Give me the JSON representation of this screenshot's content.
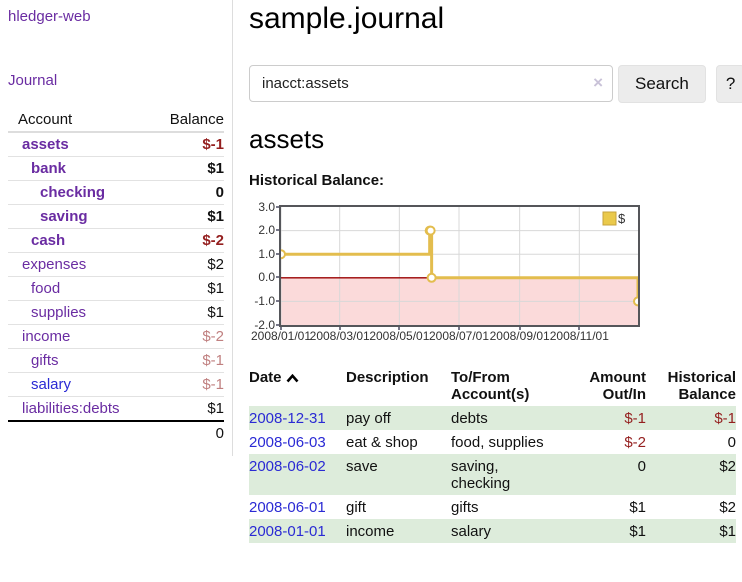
{
  "colors": {
    "link_purple": "#6a2ca2",
    "link_blue": "#2a2ad4",
    "negative_strong": "#941f1f",
    "negative_soft": "#c08080",
    "row_green": "#ddecdb",
    "chart_line": "#e3bd4e",
    "chart_legend_fill": "#eac94b",
    "chart_legend_border": "#c7a33c",
    "chart_negative_fill": "#fbdada",
    "chart_zero_line": "#990000",
    "chart_grid": "#d8d8d8"
  },
  "sidebar": {
    "brand": "hledger-web",
    "nav": {
      "journal_label": "Journal"
    },
    "accounts_table": {
      "headers": {
        "account": "Account",
        "balance": "Balance"
      },
      "rows": [
        {
          "account": "assets",
          "depth": 0,
          "matched": true,
          "balance": "$-1",
          "negative": "strong"
        },
        {
          "account": "bank",
          "depth": 1,
          "matched": true,
          "balance": "$1"
        },
        {
          "account": "checking",
          "depth": 2,
          "matched": true,
          "balance": "0"
        },
        {
          "account": "saving",
          "depth": 2,
          "matched": true,
          "balance": "$1"
        },
        {
          "account": "cash",
          "depth": 1,
          "matched": true,
          "balance": "$-2",
          "negative": "strong"
        },
        {
          "account": "expenses",
          "depth": 0,
          "matched": false,
          "balance": "$2"
        },
        {
          "account": "food",
          "depth": 1,
          "matched": false,
          "balance": "$1"
        },
        {
          "account": "supplies",
          "depth": 1,
          "matched": false,
          "balance": "$1"
        },
        {
          "account": "income",
          "depth": 0,
          "matched": false,
          "balance": "$-2",
          "negative": "soft"
        },
        {
          "account": "gifts",
          "depth": 1,
          "matched": false,
          "balance": "$-1",
          "negative": "soft"
        },
        {
          "account": "salary",
          "depth": 1,
          "matched": false,
          "balance": "$-1",
          "negative": "soft",
          "unvisited": true
        },
        {
          "account": "liabilities:debts",
          "depth": 0,
          "matched": false,
          "balance": "$1"
        }
      ],
      "total": "0"
    }
  },
  "main": {
    "title": "sample.journal",
    "search": {
      "value": "inacct:assets",
      "clear_icon": "×",
      "search_label": "Search",
      "help_label": "?"
    },
    "account_heading": "assets",
    "chart_heading": "Historical Balance:"
  },
  "chart_data": {
    "type": "line",
    "title": "Historical Balance",
    "step": true,
    "xlim": [
      "2008-01-01",
      "2008-12-31"
    ],
    "ylim": [
      -2,
      3
    ],
    "y_ticks": [
      "3.0",
      "2.0",
      "1.0",
      "0.0",
      "-1.0",
      "-2.0"
    ],
    "x_ticks": [
      "2008/01/01",
      "2008/03/01",
      "2008/05/01",
      "2008/07/01",
      "2008/09/01",
      "2008/11/01"
    ],
    "grid": true,
    "legend": {
      "label": "$",
      "position": "top-right"
    },
    "series": [
      {
        "name": "$",
        "points": [
          {
            "x": "2008-01-01",
            "y": 1
          },
          {
            "x": "2008-06-01",
            "y": 2
          },
          {
            "x": "2008-06-02",
            "y": 2
          },
          {
            "x": "2008-06-03",
            "y": 0
          },
          {
            "x": "2008-12-31",
            "y": -1
          }
        ]
      }
    ]
  },
  "register": {
    "headers": {
      "date": "Date",
      "description": "Description",
      "accounts": "To/From Account(s)",
      "amount": "Amount Out/In",
      "balance": "Historical Balance"
    },
    "sort_icon": "chevron-up",
    "rows": [
      {
        "date": "2008-12-31",
        "description": "pay off",
        "accounts": "debts",
        "amount": "$-1",
        "amount_neg": true,
        "balance": "$-1",
        "balance_neg": true
      },
      {
        "date": "2008-06-03",
        "description": "eat & shop",
        "accounts": "food, supplies",
        "amount": "$-2",
        "amount_neg": true,
        "balance": "0",
        "balance_neg": false
      },
      {
        "date": "2008-06-02",
        "description": "save",
        "accounts": "saving,\nchecking",
        "amount": "0",
        "amount_neg": false,
        "balance": "$2",
        "balance_neg": false
      },
      {
        "date": "2008-06-01",
        "description": "gift",
        "accounts": "gifts",
        "amount": "$1",
        "amount_neg": false,
        "balance": "$2",
        "balance_neg": false
      },
      {
        "date": "2008-01-01",
        "description": "income",
        "accounts": "salary",
        "amount": "$1",
        "amount_neg": false,
        "balance": "$1",
        "balance_neg": false
      }
    ]
  }
}
